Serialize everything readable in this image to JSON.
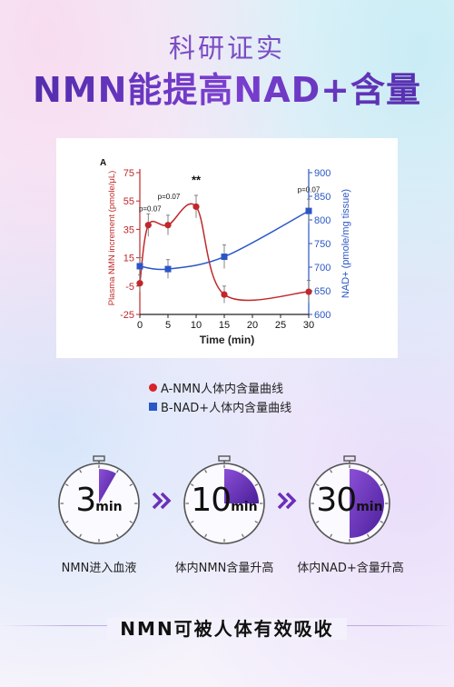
{
  "header": {
    "subtitle": "科研证实",
    "title": "NMN能提高NAD+含量"
  },
  "chart_data": {
    "type": "line",
    "panel_label": "A",
    "xlabel": "Time (min)",
    "ylabel_left": "Plasma NMN increment (pmole/μL)",
    "ylabel_right": "NAD+ (pmole/mg tissue)",
    "x_ticks": [
      0,
      5,
      10,
      15,
      20,
      25,
      30
    ],
    "y_left_ticks": [
      -25,
      -5,
      15,
      35,
      55,
      75
    ],
    "y_right_ticks": [
      600,
      650,
      700,
      750,
      800,
      850,
      900
    ],
    "y_left_range": [
      -25,
      75
    ],
    "y_right_range": [
      600,
      900
    ],
    "series": [
      {
        "name": "A-NMN人体内含量曲线",
        "axis": "left",
        "color": "#c0282b",
        "marker": "circle",
        "x": [
          0,
          1.5,
          5,
          10,
          15,
          30
        ],
        "y": [
          -3,
          38,
          38,
          51,
          -11,
          -9
        ],
        "err": [
          6,
          8,
          7,
          8,
          6,
          8
        ]
      },
      {
        "name": "B-NAD+人体内含量曲线",
        "axis": "right",
        "color": "#2a56c6",
        "marker": "square",
        "x": [
          0,
          5,
          15,
          30
        ],
        "y": [
          702,
          696,
          722,
          819
        ],
        "err": [
          18,
          20,
          25,
          25
        ]
      }
    ],
    "annotations": [
      "p=0.07",
      "p=0.07",
      "**",
      "p=0.07"
    ]
  },
  "legend": {
    "item_a": "A-NMN人体内含量曲线",
    "item_b": "B-NAD+人体内含量曲线"
  },
  "timers": [
    {
      "num": "3",
      "unit": "min",
      "fraction": 0.083,
      "caption": "NMN进入血液"
    },
    {
      "num": "10",
      "unit": "min",
      "fraction": 0.25,
      "caption": "体内NMN含量升高"
    },
    {
      "num": "30",
      "unit": "min",
      "fraction": 0.5,
      "caption": "体内NAD+含量升高"
    }
  ],
  "arrow_glyph": "»",
  "footer": {
    "slogan": "NMN可被人体有效吸收"
  }
}
